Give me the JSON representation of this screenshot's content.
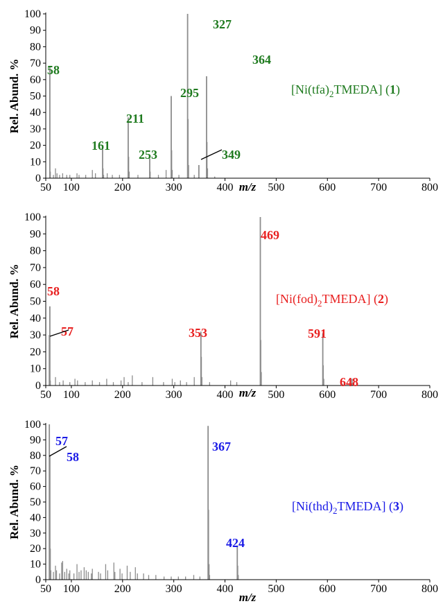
{
  "chart_data": [
    {
      "type": "bar",
      "panel_label": "[Ni(tfa)",
      "panel_label_sub": "2",
      "panel_label_mid": "TMEDA] (",
      "panel_label_num": "1",
      "panel_label_end": ")",
      "color": "#1e7a1e",
      "xlabel": "m/z",
      "ylabel": "Rel. Abund. %",
      "xlim": [
        50,
        800
      ],
      "ylim": [
        0,
        100
      ],
      "xticks": [
        "50",
        "100",
        "200",
        "300",
        "400",
        "500",
        "600",
        "700",
        "800"
      ],
      "yticks": [
        "0",
        "10",
        "20",
        "30",
        "40",
        "50",
        "60",
        "70",
        "80",
        "90",
        "100"
      ],
      "major_peaks": [
        {
          "mz": 58,
          "abundance": 68,
          "label": "58"
        },
        {
          "mz": 161,
          "abundance": 20,
          "label": "161"
        },
        {
          "mz": 211,
          "abundance": 37,
          "label": "211"
        },
        {
          "mz": 253,
          "abundance": 12,
          "label": "253"
        },
        {
          "mz": 295,
          "abundance": 50,
          "label": "295"
        },
        {
          "mz": 327,
          "abundance": 100,
          "label": "327"
        },
        {
          "mz": 349,
          "abundance": 8,
          "label": "349"
        },
        {
          "mz": 364,
          "abundance": 62,
          "label": "364"
        }
      ],
      "minor_peaks": [
        {
          "mz": 59,
          "abundance": 4
        },
        {
          "mz": 65,
          "abundance": 2
        },
        {
          "mz": 69,
          "abundance": 6
        },
        {
          "mz": 72,
          "abundance": 3
        },
        {
          "mz": 77,
          "abundance": 2
        },
        {
          "mz": 83,
          "abundance": 3
        },
        {
          "mz": 91,
          "abundance": 2
        },
        {
          "mz": 97,
          "abundance": 2
        },
        {
          "mz": 111,
          "abundance": 3
        },
        {
          "mz": 115,
          "abundance": 2
        },
        {
          "mz": 128,
          "abundance": 2
        },
        {
          "mz": 141,
          "abundance": 5
        },
        {
          "mz": 147,
          "abundance": 3
        },
        {
          "mz": 162,
          "abundance": 6
        },
        {
          "mz": 163,
          "abundance": 2
        },
        {
          "mz": 170,
          "abundance": 3
        },
        {
          "mz": 180,
          "abundance": 2
        },
        {
          "mz": 194,
          "abundance": 2
        },
        {
          "mz": 212,
          "abundance": 13
        },
        {
          "mz": 213,
          "abundance": 4
        },
        {
          "mz": 230,
          "abundance": 2
        },
        {
          "mz": 254,
          "abundance": 4
        },
        {
          "mz": 270,
          "abundance": 2
        },
        {
          "mz": 285,
          "abundance": 5
        },
        {
          "mz": 296,
          "abundance": 17
        },
        {
          "mz": 297,
          "abundance": 5
        },
        {
          "mz": 310,
          "abundance": 2
        },
        {
          "mz": 328,
          "abundance": 36
        },
        {
          "mz": 329,
          "abundance": 8
        },
        {
          "mz": 340,
          "abundance": 2
        },
        {
          "mz": 365,
          "abundance": 22
        },
        {
          "mz": 366,
          "abundance": 6
        },
        {
          "mz": 380,
          "abundance": 1
        }
      ]
    },
    {
      "type": "bar",
      "panel_label": "[Ni(fod)",
      "panel_label_sub": "2",
      "panel_label_mid": "TMEDA] (",
      "panel_label_num": "2",
      "panel_label_end": ")",
      "color": "#e81e1e",
      "xlabel": "m/z",
      "ylabel": "Rel. Abund. %",
      "xlim": [
        50,
        800
      ],
      "ylim": [
        0,
        100
      ],
      "xticks": [
        "50",
        "100",
        "200",
        "300",
        "400",
        "500",
        "600",
        "700",
        "800"
      ],
      "yticks": [
        "0",
        "10",
        "20",
        "30",
        "40",
        "50",
        "60",
        "70",
        "80",
        "90",
        "100"
      ],
      "major_peaks": [
        {
          "mz": 57,
          "abundance": 30,
          "label": "57"
        },
        {
          "mz": 58,
          "abundance": 47,
          "label": "58"
        },
        {
          "mz": 353,
          "abundance": 32,
          "label": "353"
        },
        {
          "mz": 469,
          "abundance": 100,
          "label": "469"
        },
        {
          "mz": 591,
          "abundance": 31,
          "label": "591"
        },
        {
          "mz": 648,
          "abundance": 4,
          "label": "648"
        }
      ],
      "minor_peaks": [
        {
          "mz": 59,
          "abundance": 3
        },
        {
          "mz": 69,
          "abundance": 5
        },
        {
          "mz": 77,
          "abundance": 2
        },
        {
          "mz": 84,
          "abundance": 3
        },
        {
          "mz": 97,
          "abundance": 2
        },
        {
          "mz": 107,
          "abundance": 4
        },
        {
          "mz": 112,
          "abundance": 3
        },
        {
          "mz": 127,
          "abundance": 2
        },
        {
          "mz": 141,
          "abundance": 3
        },
        {
          "mz": 155,
          "abundance": 2
        },
        {
          "mz": 169,
          "abundance": 4
        },
        {
          "mz": 182,
          "abundance": 2
        },
        {
          "mz": 197,
          "abundance": 3
        },
        {
          "mz": 203,
          "abundance": 5
        },
        {
          "mz": 211,
          "abundance": 2
        },
        {
          "mz": 219,
          "abundance": 6
        },
        {
          "mz": 238,
          "abundance": 2
        },
        {
          "mz": 259,
          "abundance": 5
        },
        {
          "mz": 280,
          "abundance": 2
        },
        {
          "mz": 297,
          "abundance": 4
        },
        {
          "mz": 302,
          "abundance": 2
        },
        {
          "mz": 313,
          "abundance": 3
        },
        {
          "mz": 325,
          "abundance": 2
        },
        {
          "mz": 340,
          "abundance": 5
        },
        {
          "mz": 354,
          "abundance": 17
        },
        {
          "mz": 355,
          "abundance": 5
        },
        {
          "mz": 370,
          "abundance": 2
        },
        {
          "mz": 411,
          "abundance": 3
        },
        {
          "mz": 423,
          "abundance": 2
        },
        {
          "mz": 470,
          "abundance": 27
        },
        {
          "mz": 471,
          "abundance": 8
        },
        {
          "mz": 592,
          "abundance": 12
        },
        {
          "mz": 593,
          "abundance": 4
        },
        {
          "mz": 630,
          "abundance": 1
        }
      ]
    },
    {
      "type": "bar",
      "panel_label": "[Ni(thd)",
      "panel_label_sub": "2",
      "panel_label_mid": "TMEDA] (",
      "panel_label_num": "3",
      "panel_label_end": ")",
      "color": "#1a1ae6",
      "xlabel": "m/z",
      "ylabel": "Rel. Abund. %",
      "xlim": [
        50,
        800
      ],
      "ylim": [
        0,
        100
      ],
      "xticks": [
        "50",
        "100",
        "200",
        "300",
        "400",
        "500",
        "600",
        "700",
        "800"
      ],
      "yticks": [
        "0",
        "10",
        "20",
        "30",
        "40",
        "50",
        "60",
        "70",
        "80",
        "90",
        "100"
      ],
      "major_peaks": [
        {
          "mz": 57,
          "abundance": 100,
          "label": "57"
        },
        {
          "mz": 58,
          "abundance": 80,
          "label": "58"
        },
        {
          "mz": 367,
          "abundance": 99,
          "label": "367"
        },
        {
          "mz": 424,
          "abundance": 22,
          "label": "424"
        }
      ],
      "minor_peaks": [
        {
          "mz": 59,
          "abundance": 20
        },
        {
          "mz": 60,
          "abundance": 6
        },
        {
          "mz": 65,
          "abundance": 5
        },
        {
          "mz": 69,
          "abundance": 9
        },
        {
          "mz": 71,
          "abundance": 6
        },
        {
          "mz": 77,
          "abundance": 4
        },
        {
          "mz": 81,
          "abundance": 11
        },
        {
          "mz": 83,
          "abundance": 12
        },
        {
          "mz": 87,
          "abundance": 5
        },
        {
          "mz": 91,
          "abundance": 7
        },
        {
          "mz": 95,
          "abundance": 4
        },
        {
          "mz": 97,
          "abundance": 6
        },
        {
          "mz": 105,
          "abundance": 4
        },
        {
          "mz": 111,
          "abundance": 10
        },
        {
          "mz": 115,
          "abundance": 5
        },
        {
          "mz": 119,
          "abundance": 6
        },
        {
          "mz": 125,
          "abundance": 8
        },
        {
          "mz": 129,
          "abundance": 6
        },
        {
          "mz": 133,
          "abundance": 5
        },
        {
          "mz": 139,
          "abundance": 4
        },
        {
          "mz": 141,
          "abundance": 7
        },
        {
          "mz": 153,
          "abundance": 5
        },
        {
          "mz": 157,
          "abundance": 4
        },
        {
          "mz": 167,
          "abundance": 10
        },
        {
          "mz": 171,
          "abundance": 6
        },
        {
          "mz": 183,
          "abundance": 11
        },
        {
          "mz": 185,
          "abundance": 5
        },
        {
          "mz": 195,
          "abundance": 7
        },
        {
          "mz": 199,
          "abundance": 4
        },
        {
          "mz": 209,
          "abundance": 9
        },
        {
          "mz": 215,
          "abundance": 5
        },
        {
          "mz": 225,
          "abundance": 8
        },
        {
          "mz": 229,
          "abundance": 4
        },
        {
          "mz": 241,
          "abundance": 4
        },
        {
          "mz": 251,
          "abundance": 3
        },
        {
          "mz": 265,
          "abundance": 3
        },
        {
          "mz": 281,
          "abundance": 2
        },
        {
          "mz": 295,
          "abundance": 2
        },
        {
          "mz": 309,
          "abundance": 2
        },
        {
          "mz": 323,
          "abundance": 2
        },
        {
          "mz": 339,
          "abundance": 3
        },
        {
          "mz": 351,
          "abundance": 2
        },
        {
          "mz": 368,
          "abundance": 45
        },
        {
          "mz": 369,
          "abundance": 10
        },
        {
          "mz": 370,
          "abundance": 3
        },
        {
          "mz": 425,
          "abundance": 9
        },
        {
          "mz": 426,
          "abundance": 3
        }
      ]
    }
  ]
}
